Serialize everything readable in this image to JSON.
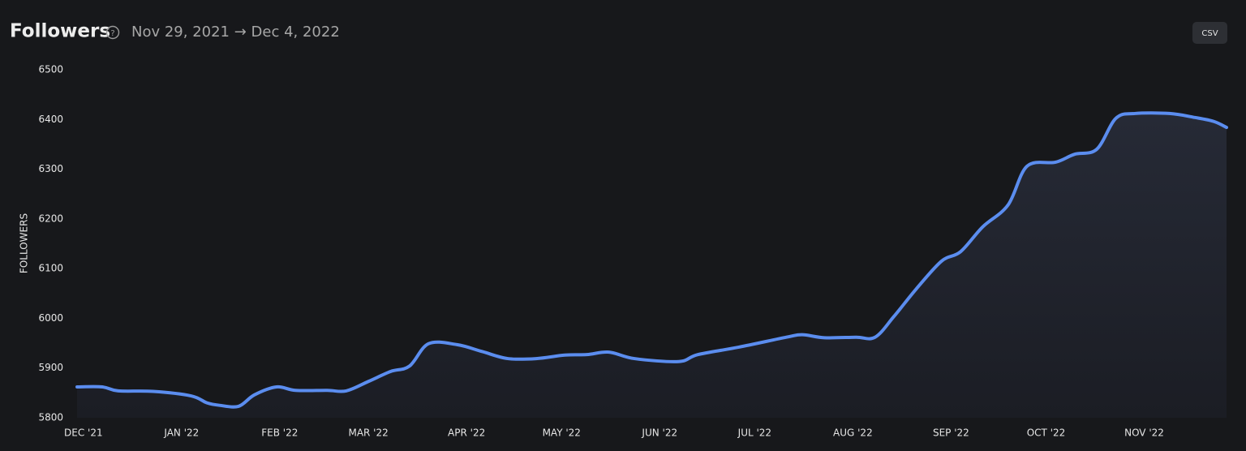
{
  "chart_data": {
    "type": "area",
    "title": "Followers",
    "subtitle": "Nov 29, 2021 → Dec 4, 2022",
    "ylabel": "FOLLOWERS",
    "x": [
      0,
      8,
      13,
      24,
      36,
      41,
      45,
      51,
      56,
      63,
      69,
      79,
      85,
      92,
      99,
      105,
      111,
      120,
      128,
      136,
      145,
      154,
      161,
      168,
      176,
      190,
      196,
      209,
      224,
      229,
      236,
      246,
      252,
      258,
      265,
      273,
      279,
      286,
      294,
      300,
      309,
      315,
      322,
      328,
      334,
      345,
      353,
      359,
      363
    ],
    "series": [
      {
        "name": "Followers",
        "color": "#5b8def",
        "values": [
          5862,
          5862,
          5854,
          5853,
          5844,
          5830,
          5825,
          5823,
          5846,
          5862,
          5855,
          5855,
          5854,
          5873,
          5893,
          5904,
          5949,
          5947,
          5933,
          5919,
          5919,
          5926,
          5927,
          5932,
          5919,
          5913,
          5927,
          5942,
          5962,
          5967,
          5961,
          5962,
          5962,
          6004,
          6059,
          6115,
          6134,
          6184,
          6228,
          6306,
          6314,
          6330,
          6340,
          6402,
          6412,
          6412,
          6404,
          6396,
          6384
        ]
      }
    ],
    "xlim": [
      0,
      363
    ],
    "xticks": [
      {
        "value": 2,
        "label": "DEC '21"
      },
      {
        "value": 33,
        "label": "JAN '22"
      },
      {
        "value": 64,
        "label": "FEB '22"
      },
      {
        "value": 92,
        "label": "MAR '22"
      },
      {
        "value": 123,
        "label": "APR '22"
      },
      {
        "value": 153,
        "label": "MAY '22"
      },
      {
        "value": 184,
        "label": "JUN '22"
      },
      {
        "value": 214,
        "label": "JUL '22"
      },
      {
        "value": 245,
        "label": "AUG '22"
      },
      {
        "value": 276,
        "label": "SEP '22"
      },
      {
        "value": 306,
        "label": "OCT '22"
      },
      {
        "value": 337,
        "label": "NOV '22"
      }
    ],
    "ylim": [
      5800,
      6500
    ],
    "yticks": [
      5800,
      5900,
      6000,
      6100,
      6200,
      6300,
      6400,
      6500
    ],
    "grid": false
  },
  "csv_button": "CSV"
}
